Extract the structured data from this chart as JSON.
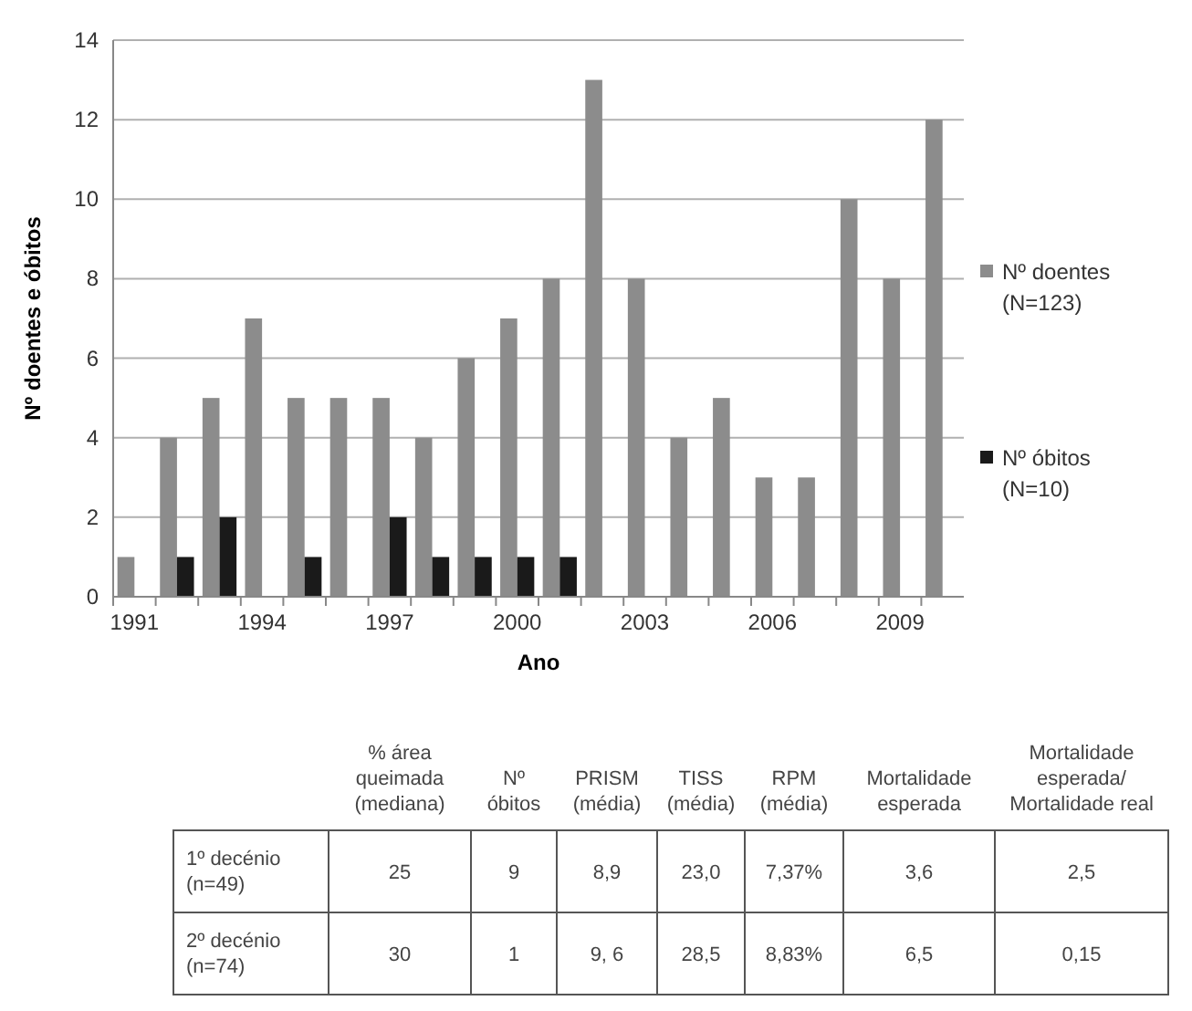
{
  "chart_data": [
    {
      "type": "bar",
      "xlabel": "Ano",
      "ylabel": "Nº doentes e óbitos",
      "categories": [
        "1991",
        null,
        null,
        "1994",
        null,
        null,
        "1997",
        null,
        null,
        "2000",
        null,
        null,
        "2003",
        null,
        null,
        "2006",
        null,
        null,
        "2009",
        null
      ],
      "series": [
        {
          "name": "Nº doentes\n(N=123)",
          "color": "#8c8c8c",
          "values": [
            1,
            4,
            5,
            7,
            5,
            5,
            5,
            4,
            6,
            7,
            8,
            13,
            8,
            4,
            5,
            3,
            3,
            10,
            8,
            12
          ]
        },
        {
          "name": "Nº óbitos\n(N=10)",
          "color": "#1a1a1a",
          "values": [
            0,
            1,
            2,
            0,
            1,
            0,
            2,
            1,
            1,
            1,
            1,
            0,
            0,
            0,
            0,
            0,
            0,
            0,
            0,
            0
          ]
        }
      ],
      "ylim": [
        0,
        14
      ],
      "yticks": [
        0,
        2,
        4,
        6,
        8,
        10,
        12,
        14
      ],
      "grid": "y",
      "legend": "right"
    },
    {
      "type": "other",
      "categories": [
        "% área\nqueimada\n(mediana)",
        "Nº\nóbitos",
        "PRISM\n(média)",
        "TISS\n(média)",
        "RPM\n(média)",
        "Mortalidade\nesperada",
        "Mortalidade\nesperada/\nMortalidade real"
      ],
      "y_categories": [
        "1º decénio\n(n=49)",
        "2º decénio\n(n=74)"
      ],
      "cell_labels": [
        [
          "25",
          "9",
          "8,9",
          "23,0",
          "7,37%",
          "3,6",
          "2,5"
        ],
        [
          "30",
          "1",
          "9, 6",
          "28,5",
          "8,83%",
          "6,5",
          "0,15"
        ]
      ]
    }
  ]
}
